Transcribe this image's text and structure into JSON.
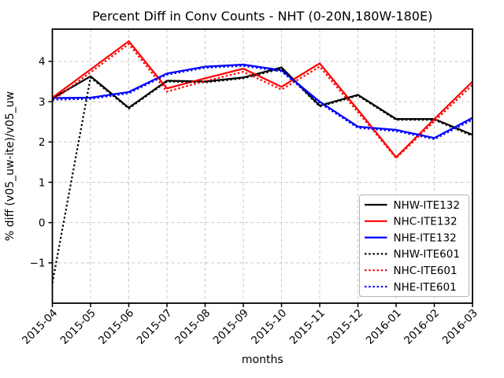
{
  "chart_data": {
    "type": "line",
    "title": "Percent Diff in Conv Counts - NHT (0-20N,180W-180E)",
    "xlabel": "months",
    "ylabel": "% diff (v05_uw-ite)/v05_uw",
    "categories": [
      "2015-04",
      "2015-05",
      "2015-06",
      "2015-07",
      "2015-08",
      "2015-09",
      "2015-10",
      "2015-11",
      "2015-12",
      "2016-01",
      "2016-02",
      "2016-03"
    ],
    "ylim": [
      -2.0,
      4.8
    ],
    "ytick_values": [
      -1,
      0,
      1,
      2,
      3,
      4
    ],
    "ytick_labels": [
      "−1",
      "0",
      "1",
      "2",
      "3",
      "4"
    ],
    "grid": true,
    "grid_style": "dashed",
    "legend_position": "lower right",
    "colors": {
      "black": "#000000",
      "red": "#ff0000",
      "blue": "#0000ff",
      "grid": "#c9c9c9",
      "legend_border": "#b3b3b3",
      "background": "#ffffff"
    },
    "series": [
      {
        "name": "NHW-ITE132",
        "color": "black",
        "style": "solid",
        "values": [
          3.08,
          3.63,
          2.85,
          3.52,
          3.5,
          3.6,
          3.85,
          2.9,
          3.17,
          2.57,
          2.57,
          2.18
        ]
      },
      {
        "name": "NHC-ITE132",
        "color": "red",
        "style": "solid",
        "values": [
          3.1,
          3.8,
          4.5,
          3.33,
          3.58,
          3.82,
          3.37,
          3.95,
          2.8,
          1.62,
          2.57,
          3.5
        ]
      },
      {
        "name": "NHE-ITE132",
        "color": "blue",
        "style": "solid",
        "values": [
          3.09,
          3.1,
          3.24,
          3.7,
          3.87,
          3.92,
          3.78,
          3.0,
          2.38,
          2.3,
          2.1,
          2.6
        ]
      },
      {
        "name": "NHW-ITE601",
        "color": "black",
        "style": "dotted",
        "values": [
          -1.5,
          3.6,
          2.83,
          3.5,
          3.48,
          3.58,
          3.82,
          2.88,
          3.15,
          2.55,
          2.55,
          2.15
        ]
      },
      {
        "name": "NHC-ITE601",
        "color": "red",
        "style": "dotted",
        "values": [
          3.02,
          3.73,
          4.43,
          3.25,
          3.51,
          3.74,
          3.3,
          3.87,
          2.74,
          1.6,
          2.51,
          3.42
        ]
      },
      {
        "name": "NHE-ITE601",
        "color": "blue",
        "style": "dotted",
        "values": [
          3.05,
          3.07,
          3.21,
          3.67,
          3.84,
          3.89,
          3.75,
          2.97,
          2.35,
          2.27,
          2.07,
          2.55
        ]
      }
    ]
  }
}
